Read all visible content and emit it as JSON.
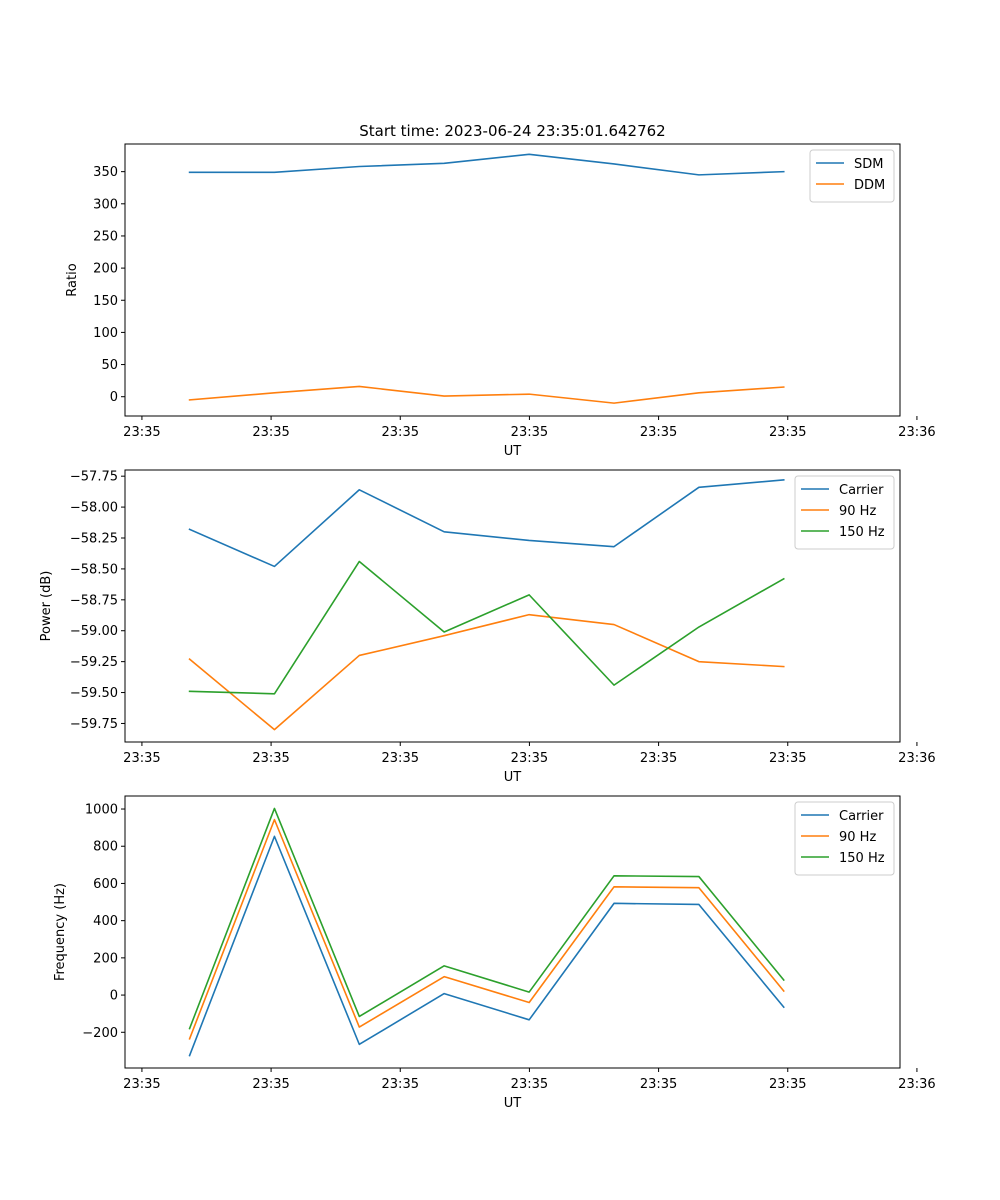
{
  "figure": {
    "title": "Start time: 2023-06-24 23:35:01.642762"
  },
  "chart_data": [
    {
      "type": "line",
      "title": "",
      "xlabel": "UT",
      "ylabel": "Ratio",
      "x": [
        0.5,
        1.157,
        1.814,
        2.471,
        3.129,
        3.786,
        4.443,
        5.1
      ],
      "xlim": [
        0,
        6
      ],
      "x_ticks": [
        0.131,
        1.131,
        2.131,
        3.131,
        4.131,
        5.131,
        6.131
      ],
      "x_tick_labels": [
        "23:35",
        "23:35",
        "23:35",
        "23:35",
        "23:35",
        "23:35",
        "23:36"
      ],
      "ylim": [
        -30,
        393
      ],
      "y_ticks": [
        0,
        50,
        100,
        150,
        200,
        250,
        300,
        350
      ],
      "legend_position": "top-right",
      "grid": false,
      "series": [
        {
          "name": "SDM",
          "color": "#1f77b4",
          "values": [
            349,
            349,
            358,
            363,
            377,
            362,
            345,
            350
          ]
        },
        {
          "name": "DDM",
          "color": "#ff7f0e",
          "values": [
            -5,
            6,
            16,
            1,
            4,
            -10,
            6,
            15
          ]
        }
      ]
    },
    {
      "type": "line",
      "title": "",
      "xlabel": "UT",
      "ylabel": "Power (dB)",
      "x": [
        0.5,
        1.157,
        1.814,
        2.471,
        3.129,
        3.786,
        4.443,
        5.1
      ],
      "xlim": [
        0,
        6
      ],
      "x_ticks": [
        0.131,
        1.131,
        2.131,
        3.131,
        4.131,
        5.131,
        6.131
      ],
      "x_tick_labels": [
        "23:35",
        "23:35",
        "23:35",
        "23:35",
        "23:35",
        "23:35",
        "23:36"
      ],
      "ylim": [
        -59.9,
        -57.7
      ],
      "y_ticks": [
        -59.75,
        -59.5,
        -59.25,
        -59.0,
        -58.75,
        -58.5,
        -58.25,
        -58.0,
        -57.75
      ],
      "y_tick_labels": [
        "−59.75",
        "−59.50",
        "−59.25",
        "−59.00",
        "−58.75",
        "−58.50",
        "−58.25",
        "−58.00",
        "−57.75"
      ],
      "legend_position": "top-right",
      "grid": false,
      "series": [
        {
          "name": "Carrier",
          "color": "#1f77b4",
          "values": [
            -58.18,
            -58.48,
            -57.86,
            -58.2,
            -58.27,
            -58.32,
            -57.84,
            -57.78
          ]
        },
        {
          "name": "90 Hz",
          "color": "#ff7f0e",
          "values": [
            -59.23,
            -59.8,
            -59.2,
            -59.04,
            -58.87,
            -58.95,
            -59.25,
            -59.29
          ]
        },
        {
          "name": "150 Hz",
          "color": "#2ca02c",
          "values": [
            -59.49,
            -59.51,
            -58.44,
            -59.01,
            -58.71,
            -59.44,
            -58.97,
            -58.58
          ]
        }
      ]
    },
    {
      "type": "line",
      "title": "",
      "xlabel": "UT",
      "ylabel": "Frequency (Hz)",
      "x": [
        0.5,
        1.157,
        1.814,
        2.471,
        3.129,
        3.786,
        4.443,
        5.1
      ],
      "xlim": [
        0,
        6
      ],
      "x_ticks": [
        0.131,
        1.131,
        2.131,
        3.131,
        4.131,
        5.131,
        6.131
      ],
      "x_tick_labels": [
        "23:35",
        "23:35",
        "23:35",
        "23:35",
        "23:35",
        "23:35",
        "23:36"
      ],
      "ylim": [
        -392,
        1070
      ],
      "y_ticks": [
        -200,
        0,
        200,
        400,
        600,
        800,
        1000
      ],
      "y_tick_labels": [
        "−200",
        "0",
        "200",
        "400",
        "600",
        "800",
        "1000"
      ],
      "legend_position": "top-right",
      "grid": false,
      "series": [
        {
          "name": "Carrier",
          "color": "#1f77b4",
          "values": [
            -325,
            853,
            -265,
            8,
            -133,
            493,
            487,
            -65
          ]
        },
        {
          "name": "90 Hz",
          "color": "#ff7f0e",
          "values": [
            -235,
            943,
            -172,
            99,
            -40,
            582,
            577,
            22
          ]
        },
        {
          "name": "150 Hz",
          "color": "#2ca02c",
          "values": [
            -180,
            1003,
            -115,
            157,
            16,
            641,
            637,
            81
          ]
        }
      ]
    }
  ]
}
